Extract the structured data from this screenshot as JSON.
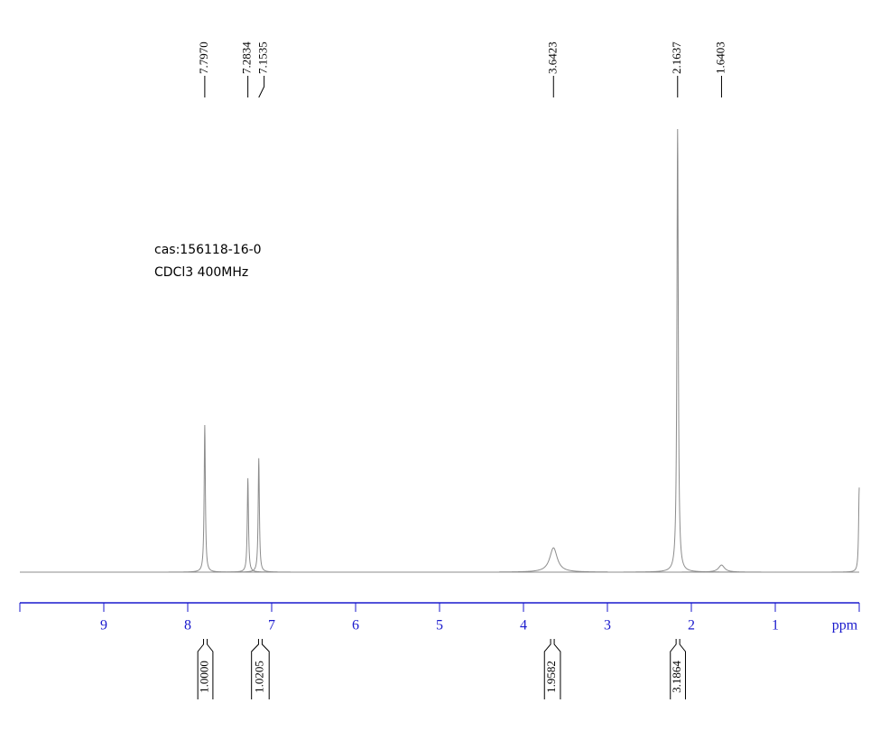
{
  "chart_data": {
    "type": "nmr",
    "annotations": [
      "cas:156118-16-0",
      "CDCl3 400MHz"
    ],
    "x_label": "ppm",
    "xlim": [
      10,
      0
    ],
    "xticks": [
      9,
      8,
      7,
      6,
      5,
      4,
      3,
      2,
      1
    ],
    "peak_shifts": [
      7.797,
      7.2834,
      7.1535,
      3.6423,
      2.1637,
      1.6403,
      0.0
    ],
    "peak_labels": [
      "7.7970",
      "7.2834",
      "7.1535",
      "3.6423",
      "2.1637",
      "1.6403",
      null
    ],
    "intensities": [
      33.2,
      21.2,
      25.7,
      5.5,
      100,
      1.6,
      19.1
    ],
    "line_color": "#8c8c8c",
    "axis_color": "#1a1acd",
    "integrals": [
      {
        "value": 1.0,
        "label": "1.0000"
      },
      {
        "value": 1.0205,
        "label": "1.0205"
      },
      {
        "value": 1.9582,
        "label": "1.9582"
      },
      {
        "value": 3.1864,
        "label": "3.1864"
      }
    ],
    "integral_from": [
      7.88,
      7.24,
      3.75,
      2.25
    ],
    "integral_to": [
      7.7,
      7.03,
      3.56,
      2.07
    ]
  }
}
